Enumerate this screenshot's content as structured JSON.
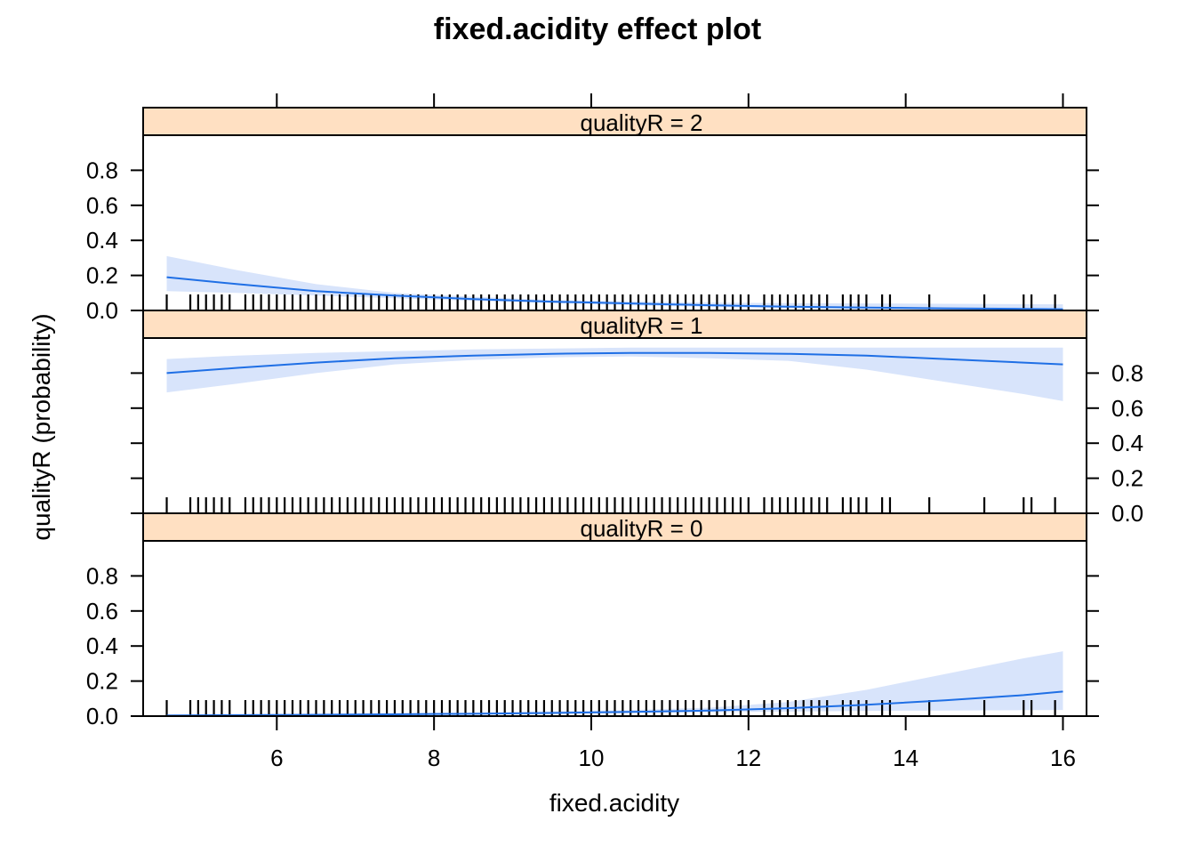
{
  "chart_data": {
    "type": "line",
    "title": "fixed.acidity effect plot",
    "xlabel": "fixed.acidity",
    "ylabel": "qualityR (probability)",
    "xlim": [
      4.3,
      16.3
    ],
    "ylim": [
      0,
      1
    ],
    "x_ticks": [
      "6",
      "8",
      "10",
      "12",
      "14",
      "16"
    ],
    "y_ticks": [
      "0.0",
      "0.2",
      "0.4",
      "0.6",
      "0.8"
    ],
    "grid": false,
    "line_color": "#1f6fe5",
    "band_color": "#d8e4fb",
    "strip_color": "#ffe0c2",
    "panels": [
      {
        "strip": "qualityR = 2",
        "x": [
          4.6,
          5.5,
          6.5,
          7.5,
          8.5,
          9.5,
          10.5,
          11.5,
          12.5,
          13.5,
          14.5,
          15.5,
          16.0
        ],
        "fit": [
          0.19,
          0.15,
          0.11,
          0.085,
          0.065,
          0.05,
          0.04,
          0.03,
          0.022,
          0.017,
          0.012,
          0.009,
          0.007
        ],
        "lower": [
          0.11,
          0.1,
          0.085,
          0.07,
          0.055,
          0.042,
          0.03,
          0.02,
          0.012,
          0.007,
          0.004,
          0.002,
          0.0015
        ],
        "upper": [
          0.31,
          0.23,
          0.15,
          0.1,
          0.078,
          0.06,
          0.052,
          0.045,
          0.042,
          0.04,
          0.038,
          0.036,
          0.035
        ]
      },
      {
        "strip": "qualityR = 1",
        "x": [
          4.6,
          5.5,
          6.5,
          7.5,
          8.5,
          9.5,
          10.5,
          11.5,
          12.5,
          13.5,
          14.5,
          15.5,
          16.0
        ],
        "fit": [
          0.8,
          0.83,
          0.86,
          0.885,
          0.9,
          0.91,
          0.915,
          0.915,
          0.91,
          0.9,
          0.88,
          0.86,
          0.85
        ],
        "lower": [
          0.69,
          0.74,
          0.8,
          0.85,
          0.875,
          0.89,
          0.895,
          0.885,
          0.87,
          0.82,
          0.75,
          0.68,
          0.64
        ],
        "upper": [
          0.88,
          0.9,
          0.915,
          0.925,
          0.935,
          0.94,
          0.945,
          0.945,
          0.945,
          0.945,
          0.945,
          0.945,
          0.945
        ]
      },
      {
        "strip": "qualityR = 0",
        "x": [
          4.6,
          5.5,
          6.5,
          7.5,
          8.5,
          9.5,
          10.5,
          11.5,
          12.5,
          13.5,
          14.5,
          15.5,
          16.0
        ],
        "fit": [
          0.003,
          0.005,
          0.007,
          0.01,
          0.013,
          0.018,
          0.024,
          0.032,
          0.045,
          0.065,
          0.09,
          0.12,
          0.14
        ],
        "lower": [
          0.001,
          0.002,
          0.004,
          0.007,
          0.01,
          0.014,
          0.018,
          0.022,
          0.026,
          0.03,
          0.032,
          0.034,
          0.035
        ],
        "upper": [
          0.012,
          0.014,
          0.016,
          0.018,
          0.022,
          0.028,
          0.035,
          0.048,
          0.08,
          0.15,
          0.24,
          0.33,
          0.37
        ]
      }
    ],
    "rug_x": [
      4.6,
      4.9,
      5.0,
      5.1,
      5.2,
      5.3,
      5.4,
      5.6,
      5.7,
      5.8,
      5.9,
      6.0,
      6.1,
      6.2,
      6.3,
      6.4,
      6.5,
      6.6,
      6.7,
      6.8,
      6.9,
      7.0,
      7.1,
      7.2,
      7.3,
      7.4,
      7.5,
      7.6,
      7.7,
      7.8,
      7.9,
      8.0,
      8.1,
      8.2,
      8.3,
      8.4,
      8.5,
      8.6,
      8.7,
      8.8,
      8.9,
      9.0,
      9.1,
      9.2,
      9.3,
      9.4,
      9.5,
      9.6,
      9.7,
      9.8,
      9.9,
      10.0,
      10.1,
      10.2,
      10.3,
      10.4,
      10.5,
      10.6,
      10.7,
      10.8,
      10.9,
      11.0,
      11.1,
      11.2,
      11.3,
      11.4,
      11.5,
      11.6,
      11.7,
      11.8,
      11.9,
      12.0,
      12.2,
      12.3,
      12.4,
      12.5,
      12.6,
      12.7,
      12.8,
      12.9,
      13.0,
      13.2,
      13.3,
      13.4,
      13.5,
      13.7,
      13.8,
      14.3,
      15.0,
      15.5,
      15.6,
      15.9
    ]
  }
}
